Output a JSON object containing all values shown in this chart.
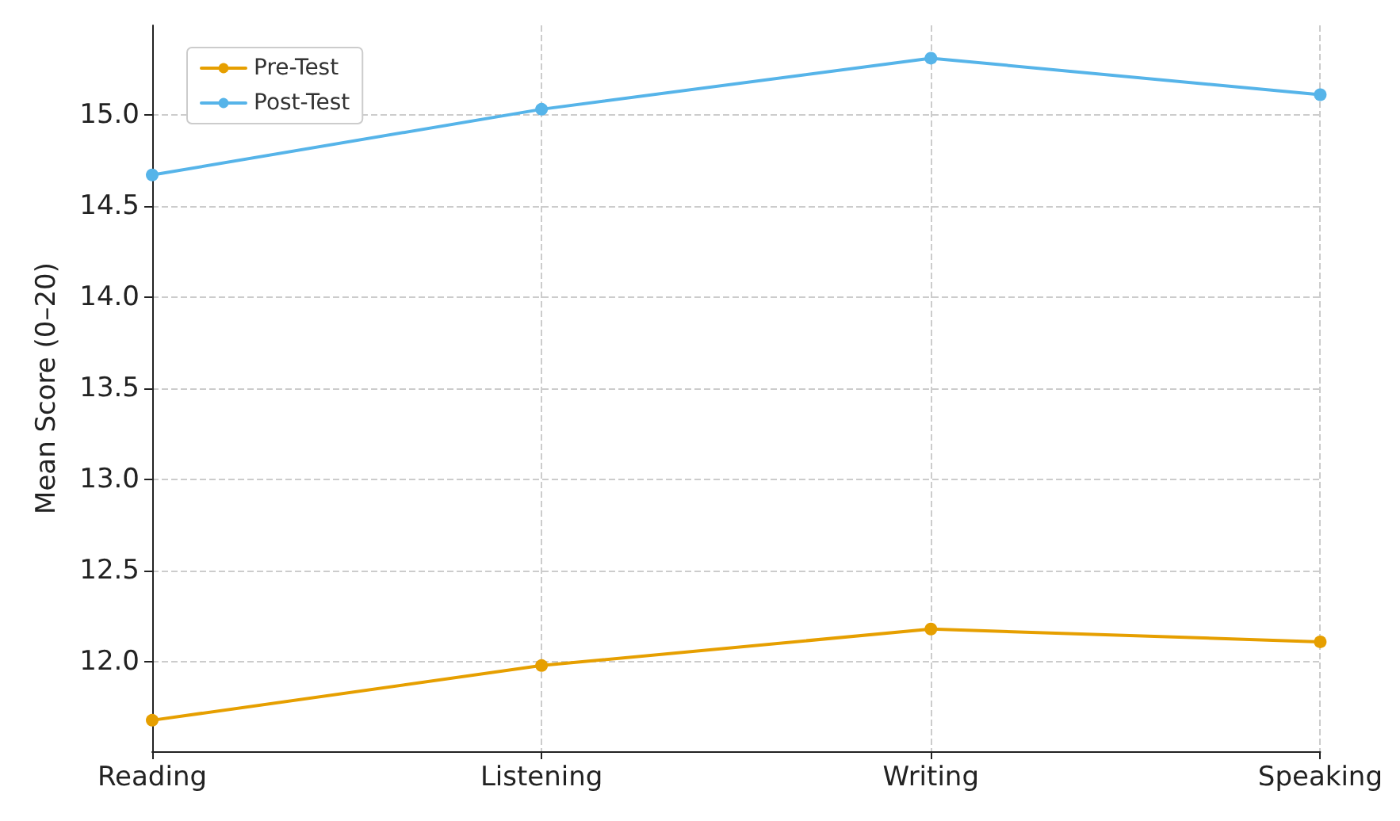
{
  "chart_data": {
    "type": "line",
    "ylabel": "Mean Score (0–20)",
    "categories": [
      "Reading",
      "Listening",
      "Writing",
      "Speaking"
    ],
    "series": [
      {
        "name": "Pre-Test",
        "color": "#e69f00",
        "values": [
          11.68,
          11.98,
          12.18,
          12.11
        ]
      },
      {
        "name": "Post-Test",
        "color": "#56b4e9",
        "values": [
          14.67,
          15.03,
          15.31,
          15.11
        ]
      }
    ],
    "ylim": [
      11.51,
      15.49
    ],
    "yticks": [
      {
        "value": 12,
        "label": "12.0"
      },
      {
        "value": 12.5,
        "label": "12.5"
      },
      {
        "value": 13,
        "label": "13.0"
      },
      {
        "value": 13.5,
        "label": "13.5"
      },
      {
        "value": 14,
        "label": "14.0"
      },
      {
        "value": 14.5,
        "label": "14.5"
      },
      {
        "value": 15,
        "label": "15.0"
      }
    ],
    "grid": true,
    "legend": "top left",
    "marker": "circle",
    "line_style": "solid"
  }
}
